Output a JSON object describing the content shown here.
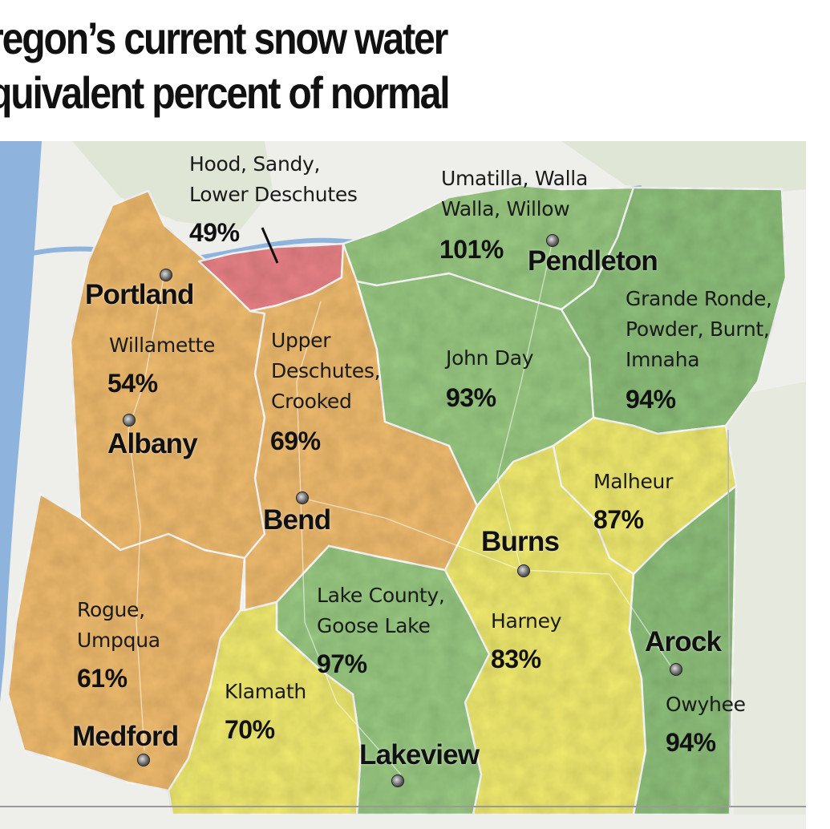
{
  "title": {
    "line1": "regon’s current snow water",
    "line2": "quivalent percent of normal"
  },
  "colors": {
    "low": "#e88286",
    "mid_orange": "#efbb6e",
    "yellow": "#f0ea70",
    "green": "#99c982",
    "green_dark": "#8dbf7a",
    "water": "#8eb4dd",
    "land": "#eeeeea"
  },
  "regions": [
    {
      "id": "hood",
      "name_lines": [
        "Hood, Sandy,",
        "Lower Deschutes"
      ],
      "percent": "49%"
    },
    {
      "id": "umatilla",
      "name_lines": [
        "Umatilla, Walla",
        "Walla, Willow"
      ],
      "percent": "101%"
    },
    {
      "id": "grande-ronde",
      "name_lines": [
        "Grande Ronde,",
        "Powder, Burnt,",
        "Imnaha"
      ],
      "percent": "94%"
    },
    {
      "id": "willamette",
      "name_lines": [
        "Willamette"
      ],
      "percent": "54%"
    },
    {
      "id": "upper-deschutes",
      "name_lines": [
        "Upper",
        "Deschutes,",
        "Crooked"
      ],
      "percent": "69%"
    },
    {
      "id": "john-day",
      "name_lines": [
        "John Day"
      ],
      "percent": "93%"
    },
    {
      "id": "malheur",
      "name_lines": [
        "Malheur"
      ],
      "percent": "87%"
    },
    {
      "id": "rogue",
      "name_lines": [
        "Rogue,",
        "Umpqua"
      ],
      "percent": "61%"
    },
    {
      "id": "lake-county",
      "name_lines": [
        "Lake County,",
        "Goose Lake"
      ],
      "percent": "97%"
    },
    {
      "id": "harney",
      "name_lines": [
        "Harney"
      ],
      "percent": "83%"
    },
    {
      "id": "owyhee",
      "name_lines": [
        "Owyhee"
      ],
      "percent": "94%"
    },
    {
      "id": "klamath",
      "name_lines": [
        "Klamath"
      ],
      "percent": "70%"
    }
  ],
  "cities": [
    {
      "id": "portland",
      "name": "Portland"
    },
    {
      "id": "pendleton",
      "name": "Pendleton"
    },
    {
      "id": "albany",
      "name": "Albany"
    },
    {
      "id": "bend",
      "name": "Bend"
    },
    {
      "id": "burns",
      "name": "Burns"
    },
    {
      "id": "arock",
      "name": "Arock"
    },
    {
      "id": "medford",
      "name": "Medford"
    },
    {
      "id": "lakeview",
      "name": "Lakeview"
    }
  ]
}
